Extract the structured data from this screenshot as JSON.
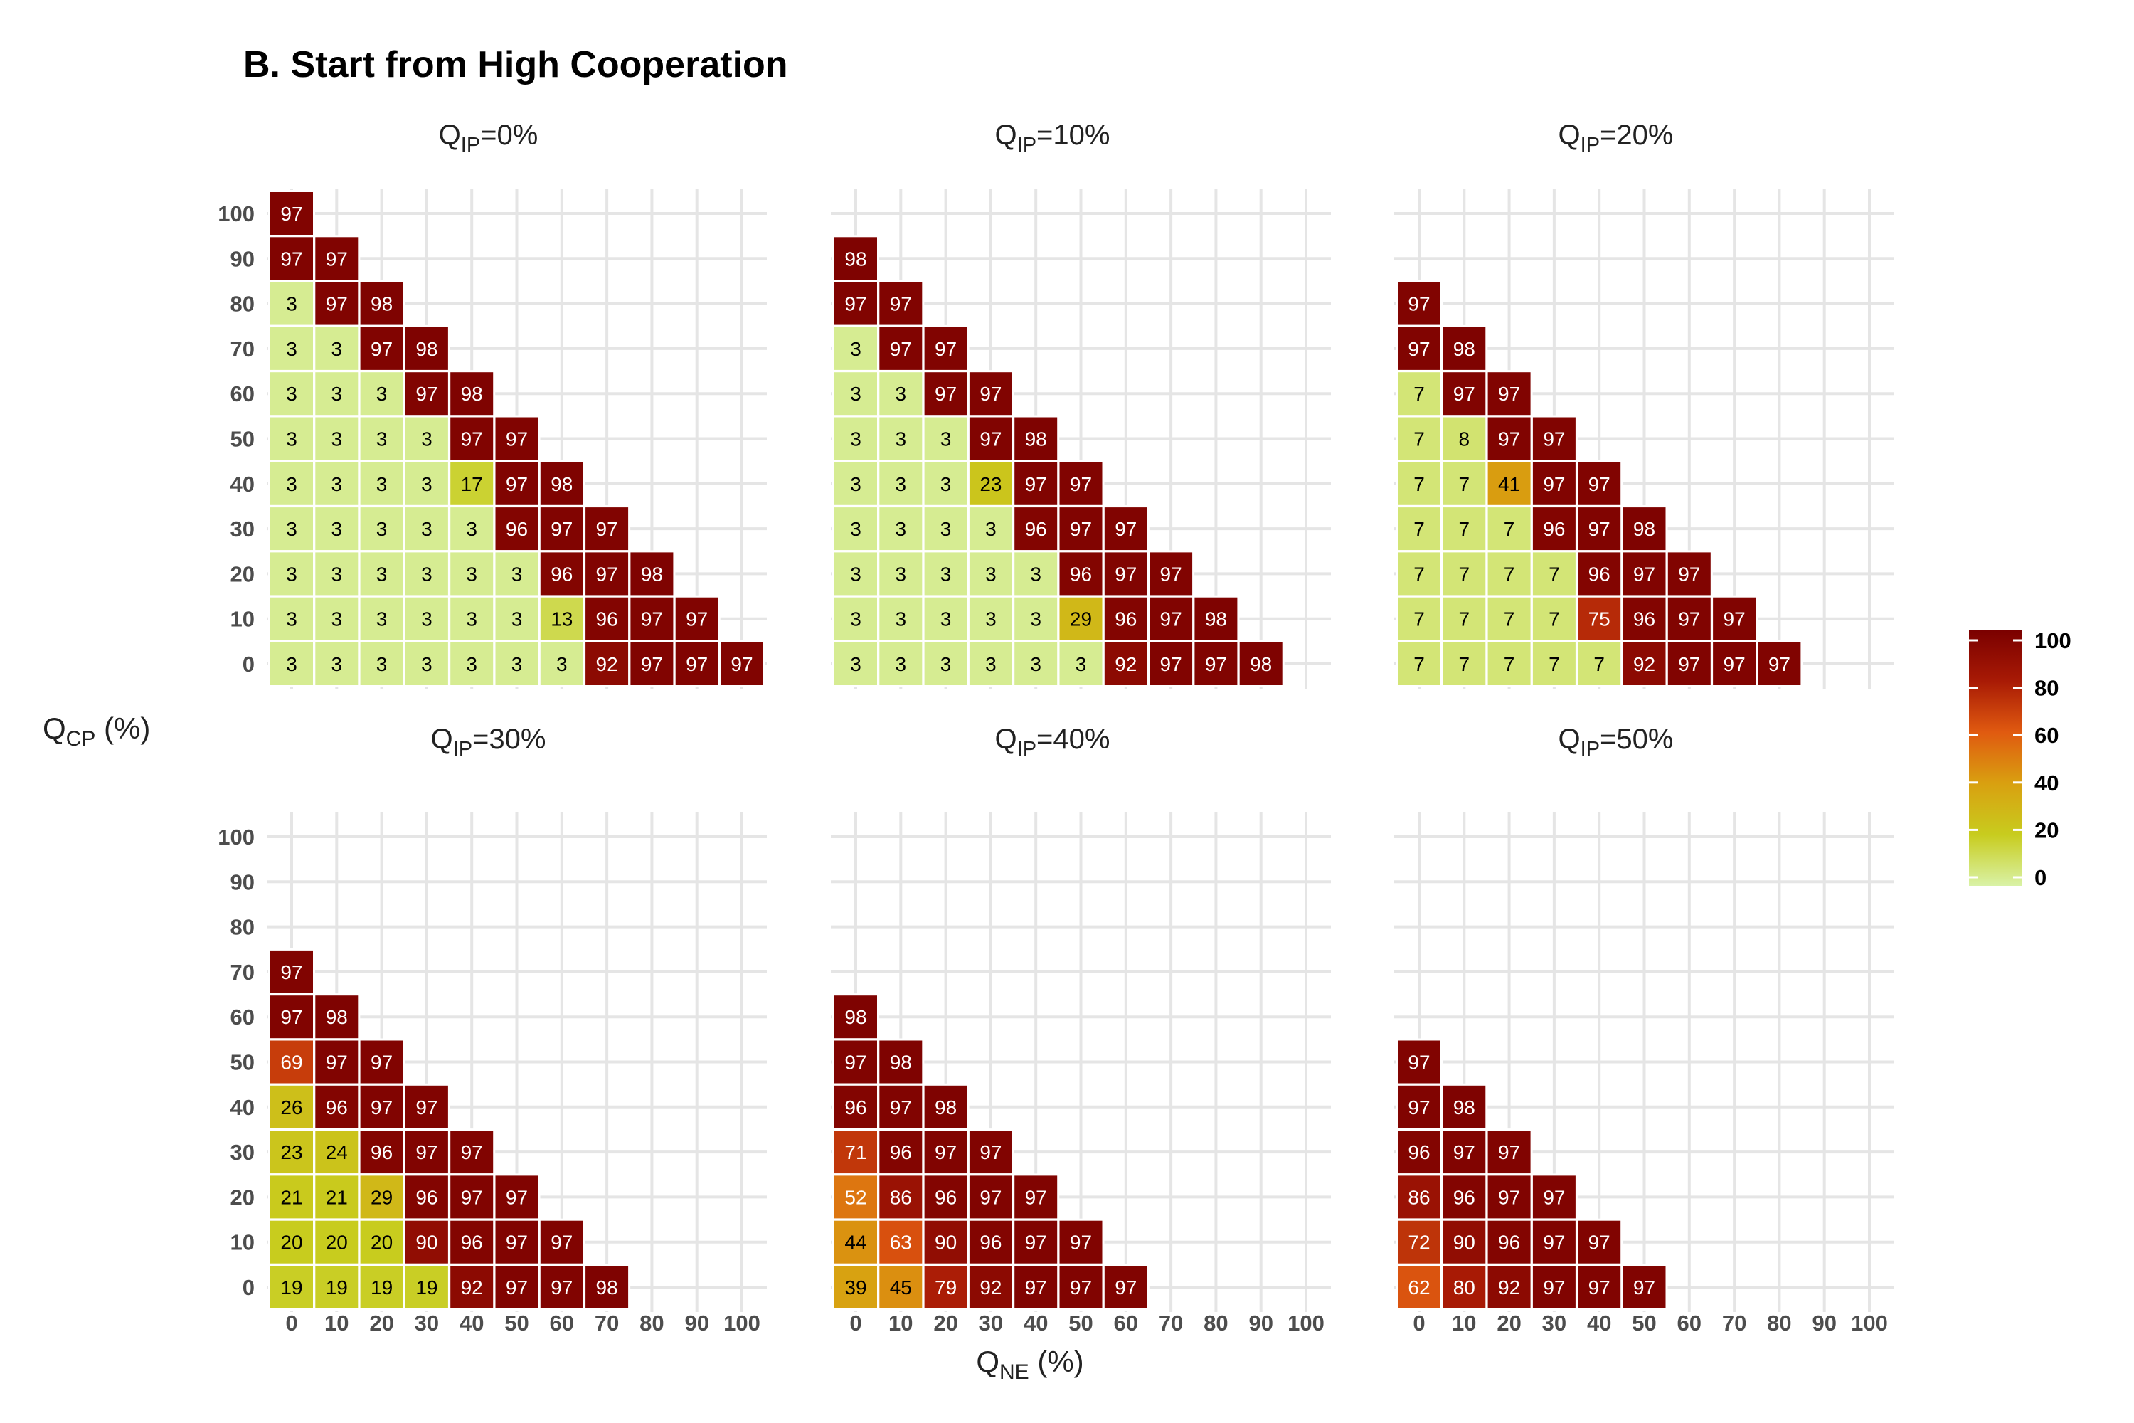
{
  "title": "B. Start from High Cooperation",
  "axes": {
    "x_title_main": "Q",
    "x_title_sub": "NE",
    "x_title_unit": " (%)",
    "y_title_main": "Q",
    "y_title_sub": "CP",
    "y_title_unit": " (%)"
  },
  "colors": {
    "low": "#d9f2a6",
    "mid_low": "#c8cc1e",
    "mid": "#e05a10",
    "high": "#7a0000",
    "grid": "#e5e5e5",
    "cell_border": "#ffffff"
  },
  "legend": {
    "ticks": [
      "100",
      "80",
      "60",
      "40",
      "20",
      "0"
    ],
    "range": [
      0,
      100
    ]
  },
  "chart_data": {
    "type": "heatmap",
    "x_ticks": [
      "0",
      "10",
      "20",
      "30",
      "40",
      "50",
      "60",
      "70",
      "80",
      "90",
      "100"
    ],
    "y_ticks": [
      "100",
      "90",
      "80",
      "70",
      "60",
      "50",
      "40",
      "30",
      "20",
      "10",
      "0"
    ],
    "panels": [
      {
        "strip_main": "Q",
        "strip_sub": "IP",
        "strip_value": "=0%",
        "rows": [
          {
            "y": 100,
            "values": [
              97
            ]
          },
          {
            "y": 90,
            "values": [
              97,
              97
            ]
          },
          {
            "y": 80,
            "values": [
              3,
              97,
              98
            ]
          },
          {
            "y": 70,
            "values": [
              3,
              3,
              97,
              98
            ]
          },
          {
            "y": 60,
            "values": [
              3,
              3,
              3,
              97,
              98
            ]
          },
          {
            "y": 50,
            "values": [
              3,
              3,
              3,
              3,
              97,
              97
            ]
          },
          {
            "y": 40,
            "values": [
              3,
              3,
              3,
              3,
              17,
              97,
              98
            ]
          },
          {
            "y": 30,
            "values": [
              3,
              3,
              3,
              3,
              3,
              96,
              97,
              97
            ]
          },
          {
            "y": 20,
            "values": [
              3,
              3,
              3,
              3,
              3,
              3,
              96,
              97,
              98
            ]
          },
          {
            "y": 10,
            "values": [
              3,
              3,
              3,
              3,
              3,
              3,
              13,
              96,
              97,
              97
            ]
          },
          {
            "y": 0,
            "values": [
              3,
              3,
              3,
              3,
              3,
              3,
              3,
              92,
              97,
              97,
              97
            ]
          }
        ]
      },
      {
        "strip_main": "Q",
        "strip_sub": "IP",
        "strip_value": "=10%",
        "rows": [
          {
            "y": 90,
            "values": [
              98
            ]
          },
          {
            "y": 80,
            "values": [
              97,
              97
            ]
          },
          {
            "y": 70,
            "values": [
              3,
              97,
              97
            ]
          },
          {
            "y": 60,
            "values": [
              3,
              3,
              97,
              97
            ]
          },
          {
            "y": 50,
            "values": [
              3,
              3,
              3,
              97,
              98
            ]
          },
          {
            "y": 40,
            "values": [
              3,
              3,
              3,
              23,
              97,
              97
            ]
          },
          {
            "y": 30,
            "values": [
              3,
              3,
              3,
              3,
              96,
              97,
              97
            ]
          },
          {
            "y": 20,
            "values": [
              3,
              3,
              3,
              3,
              3,
              96,
              97,
              97
            ]
          },
          {
            "y": 10,
            "values": [
              3,
              3,
              3,
              3,
              3,
              29,
              96,
              97,
              98
            ]
          },
          {
            "y": 0,
            "values": [
              3,
              3,
              3,
              3,
              3,
              3,
              92,
              97,
              97,
              98
            ]
          }
        ]
      },
      {
        "strip_main": "Q",
        "strip_sub": "IP",
        "strip_value": "=20%",
        "rows": [
          {
            "y": 80,
            "values": [
              97
            ]
          },
          {
            "y": 70,
            "values": [
              97,
              98
            ]
          },
          {
            "y": 60,
            "values": [
              7,
              97,
              97
            ]
          },
          {
            "y": 50,
            "values": [
              7,
              8,
              97,
              97
            ]
          },
          {
            "y": 40,
            "values": [
              7,
              7,
              41,
              97,
              97
            ]
          },
          {
            "y": 30,
            "values": [
              7,
              7,
              7,
              96,
              97,
              98
            ]
          },
          {
            "y": 20,
            "values": [
              7,
              7,
              7,
              7,
              96,
              97,
              97
            ]
          },
          {
            "y": 10,
            "values": [
              7,
              7,
              7,
              7,
              75,
              96,
              97,
              97
            ]
          },
          {
            "y": 0,
            "values": [
              7,
              7,
              7,
              7,
              7,
              92,
              97,
              97,
              97
            ]
          }
        ]
      },
      {
        "strip_main": "Q",
        "strip_sub": "IP",
        "strip_value": "=30%",
        "rows": [
          {
            "y": 70,
            "values": [
              97
            ]
          },
          {
            "y": 60,
            "values": [
              97,
              98
            ]
          },
          {
            "y": 50,
            "values": [
              69,
              97,
              97
            ]
          },
          {
            "y": 40,
            "values": [
              26,
              96,
              97,
              97
            ]
          },
          {
            "y": 30,
            "values": [
              23,
              24,
              96,
              97,
              97
            ]
          },
          {
            "y": 20,
            "values": [
              21,
              21,
              29,
              96,
              97,
              97
            ]
          },
          {
            "y": 10,
            "values": [
              20,
              20,
              20,
              90,
              96,
              97,
              97
            ]
          },
          {
            "y": 0,
            "values": [
              19,
              19,
              19,
              19,
              92,
              97,
              97,
              98
            ]
          }
        ]
      },
      {
        "strip_main": "Q",
        "strip_sub": "IP",
        "strip_value": "=40%",
        "rows": [
          {
            "y": 60,
            "values": [
              98
            ]
          },
          {
            "y": 50,
            "values": [
              97,
              98
            ]
          },
          {
            "y": 40,
            "values": [
              96,
              97,
              98
            ]
          },
          {
            "y": 30,
            "values": [
              71,
              96,
              97,
              97
            ]
          },
          {
            "y": 20,
            "values": [
              52,
              86,
              96,
              97,
              97
            ]
          },
          {
            "y": 10,
            "values": [
              44,
              63,
              90,
              96,
              97,
              97
            ]
          },
          {
            "y": 0,
            "values": [
              39,
              45,
              79,
              92,
              97,
              97,
              97
            ]
          }
        ]
      },
      {
        "strip_main": "Q",
        "strip_sub": "IP",
        "strip_value": "=50%",
        "rows": [
          {
            "y": 50,
            "values": [
              97
            ]
          },
          {
            "y": 40,
            "values": [
              97,
              98
            ]
          },
          {
            "y": 30,
            "values": [
              96,
              97,
              97
            ]
          },
          {
            "y": 20,
            "values": [
              86,
              96,
              97,
              97
            ]
          },
          {
            "y": 10,
            "values": [
              72,
              90,
              96,
              97,
              97
            ]
          },
          {
            "y": 0,
            "values": [
              62,
              80,
              92,
              97,
              97,
              97
            ]
          }
        ]
      }
    ]
  }
}
